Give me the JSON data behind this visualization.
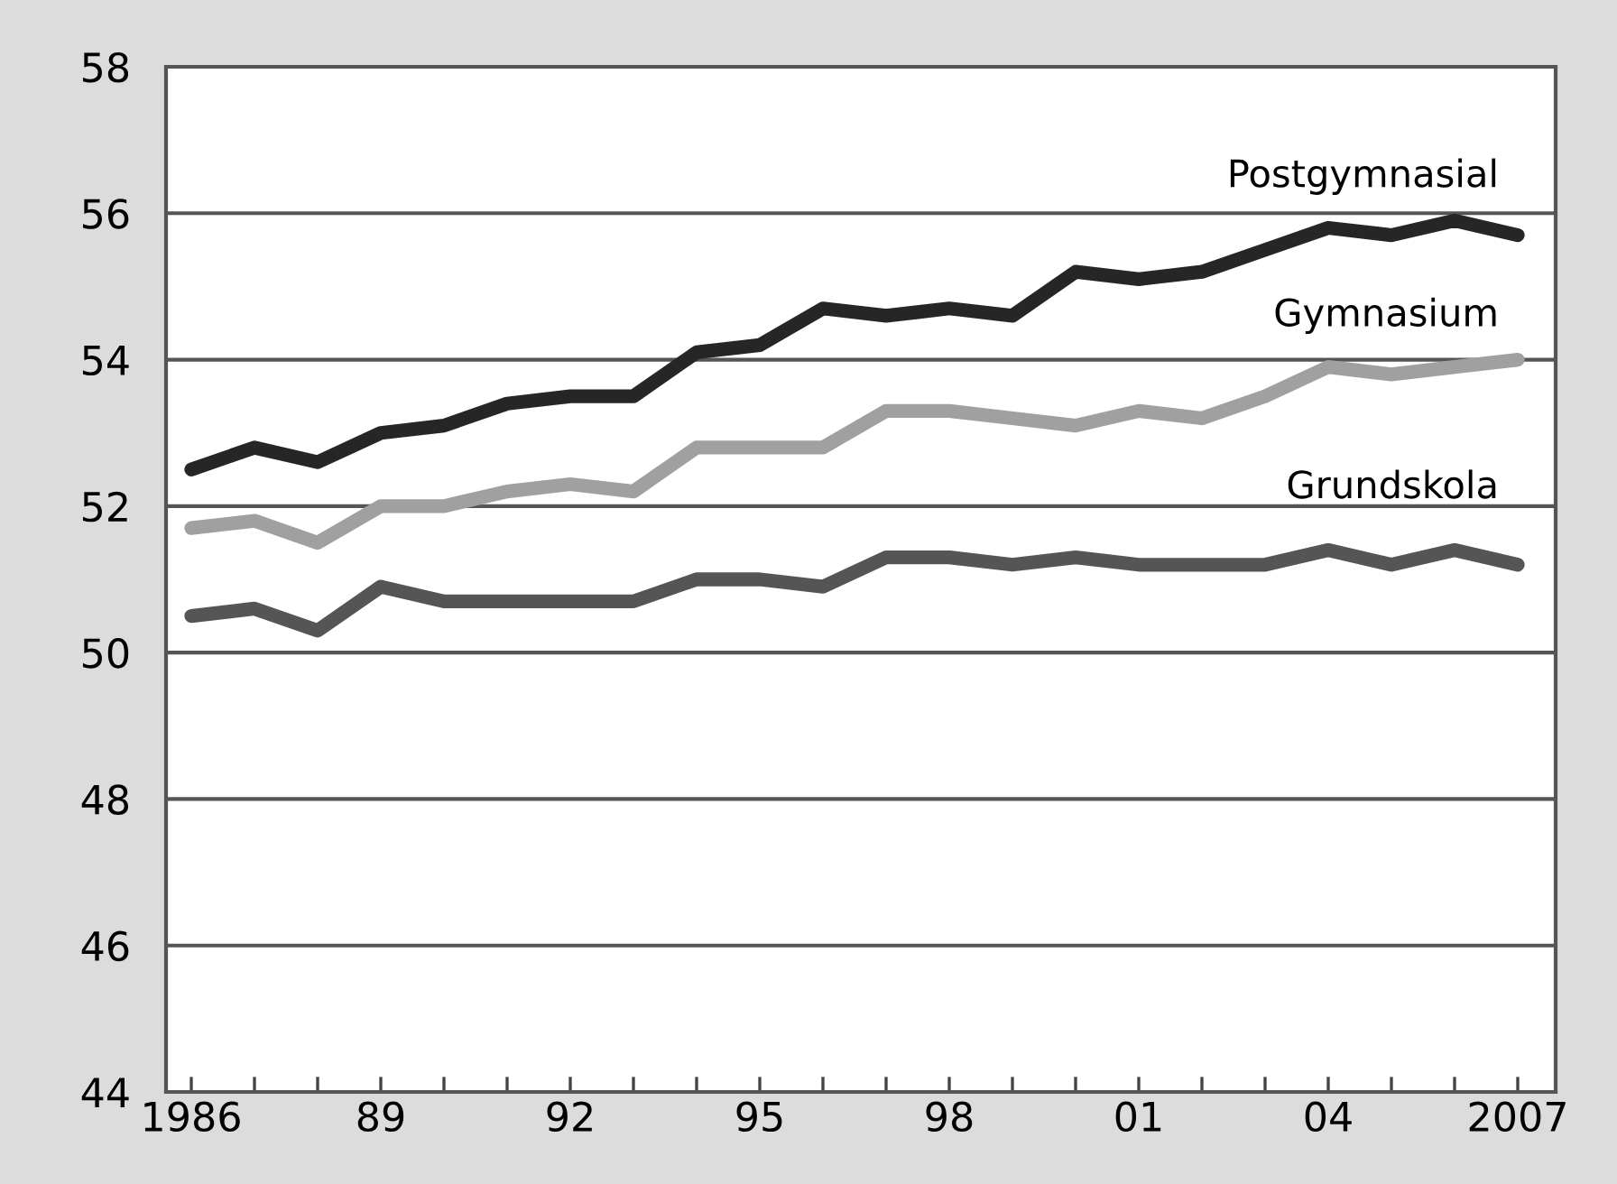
{
  "chart_data": {
    "type": "line",
    "x": [
      1986,
      1987,
      1988,
      1989,
      1990,
      1991,
      1992,
      1993,
      1994,
      1995,
      1996,
      1997,
      1998,
      1999,
      2000,
      2001,
      2002,
      2003,
      2004,
      2005,
      2006,
      2007
    ],
    "series": [
      {
        "name": "Postgymnasial",
        "color": "#262626",
        "values": [
          52.5,
          52.8,
          52.6,
          53.0,
          53.1,
          53.4,
          53.5,
          53.5,
          54.1,
          54.2,
          54.7,
          54.6,
          54.7,
          54.6,
          55.2,
          55.1,
          55.2,
          55.5,
          55.8,
          55.7,
          55.9,
          55.7
        ]
      },
      {
        "name": "Gymnasium",
        "color": "#a0a0a0",
        "values": [
          51.7,
          51.8,
          51.5,
          52.0,
          52.0,
          52.2,
          52.3,
          52.2,
          52.8,
          52.8,
          52.8,
          53.3,
          53.3,
          53.2,
          53.1,
          53.3,
          53.2,
          53.5,
          53.9,
          53.8,
          53.9,
          54.0
        ]
      },
      {
        "name": "Grundskola",
        "color": "#555555",
        "values": [
          50.5,
          50.6,
          50.3,
          50.9,
          50.7,
          50.7,
          50.7,
          50.7,
          51.0,
          51.0,
          50.9,
          51.3,
          51.3,
          51.2,
          51.3,
          51.2,
          51.2,
          51.2,
          51.4,
          51.2,
          51.4,
          51.2
        ]
      }
    ],
    "xlim": [
      1985.6,
      2007.6
    ],
    "xticks": [
      {
        "value": 1986,
        "label": "1986"
      },
      {
        "value": 1987,
        "label": null
      },
      {
        "value": 1988,
        "label": null
      },
      {
        "value": 1989,
        "label": "89"
      },
      {
        "value": 1990,
        "label": null
      },
      {
        "value": 1991,
        "label": null
      },
      {
        "value": 1992,
        "label": "92"
      },
      {
        "value": 1993,
        "label": null
      },
      {
        "value": 1994,
        "label": null
      },
      {
        "value": 1995,
        "label": "95"
      },
      {
        "value": 1996,
        "label": null
      },
      {
        "value": 1997,
        "label": null
      },
      {
        "value": 1998,
        "label": "98"
      },
      {
        "value": 1999,
        "label": null
      },
      {
        "value": 2000,
        "label": null
      },
      {
        "value": 2001,
        "label": "01"
      },
      {
        "value": 2002,
        "label": null
      },
      {
        "value": 2003,
        "label": null
      },
      {
        "value": 2004,
        "label": "04"
      },
      {
        "value": 2005,
        "label": null
      },
      {
        "value": 2006,
        "label": null
      },
      {
        "value": 2007,
        "label": "2007"
      }
    ],
    "ylim": [
      44,
      58
    ],
    "yticks": [
      44,
      46,
      48,
      50,
      52,
      54,
      56,
      58
    ],
    "grid": "y",
    "line_style": "solid",
    "marker": "none"
  }
}
